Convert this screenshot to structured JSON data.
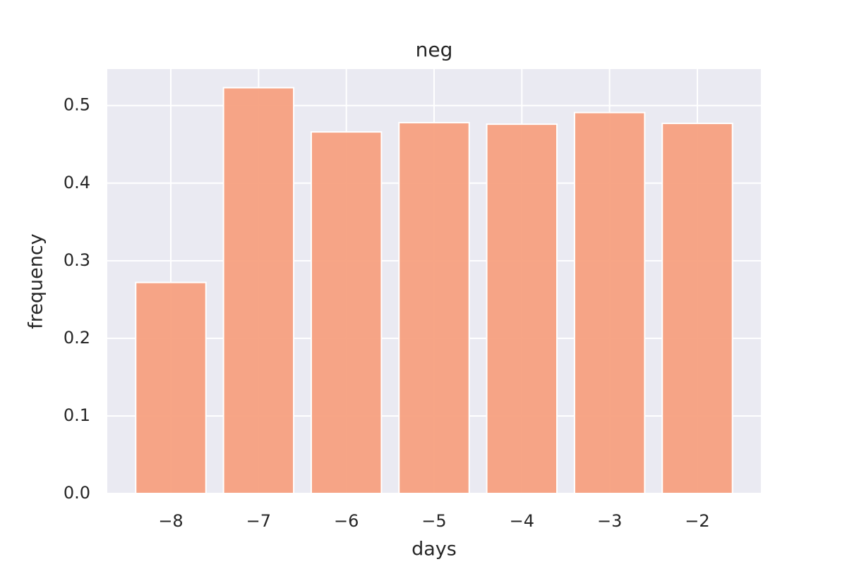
{
  "chart_data": {
    "type": "bar",
    "title": "neg",
    "x_label": "days",
    "y_label": "frequency",
    "x": [
      -8,
      -7,
      -6,
      -5,
      -4,
      -3,
      -2
    ],
    "values": [
      0.272,
      0.523,
      0.466,
      0.478,
      0.476,
      0.491,
      0.477
    ],
    "color": "#f7a07f",
    "xlim": [
      -8.724,
      -1.276
    ],
    "xticks": [
      {
        "value": -8,
        "label": "−8"
      },
      {
        "value": -7,
        "label": "−7"
      },
      {
        "value": -6,
        "label": "−6"
      },
      {
        "value": -5,
        "label": "−5"
      },
      {
        "value": -4,
        "label": "−4"
      },
      {
        "value": -3,
        "label": "−3"
      },
      {
        "value": -2,
        "label": "−2"
      }
    ],
    "ylim": [
      0,
      0.547
    ],
    "yticks": [
      {
        "value": 0,
        "label": "0.0"
      },
      0.1,
      0.2,
      0.3,
      0.4,
      0.5
    ],
    "grid": true
  }
}
